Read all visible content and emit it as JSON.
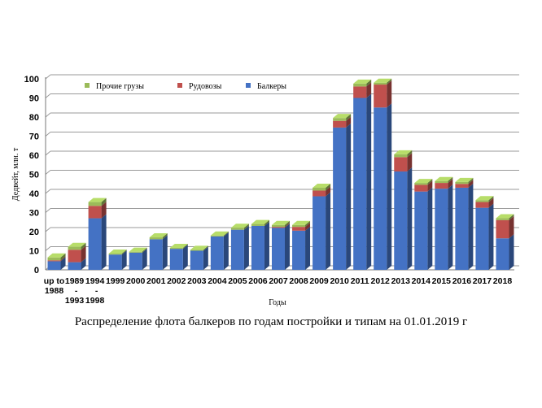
{
  "caption": "Распределение флота балкеров по годам постройки и типам на 01.01.2019 г",
  "chart_data": {
    "type": "bar",
    "stacked": true,
    "three_d": true,
    "categories": [
      [
        "up to",
        "1988"
      ],
      [
        "1989",
        "-",
        "1993"
      ],
      [
        "1994",
        "-",
        "1998"
      ],
      [
        "1999"
      ],
      [
        "2000"
      ],
      [
        "2001"
      ],
      [
        "2002"
      ],
      [
        "2003"
      ],
      [
        "2004"
      ],
      [
        "2005"
      ],
      [
        "2006"
      ],
      [
        "2007"
      ],
      [
        "2008"
      ],
      [
        "2009"
      ],
      [
        "2010"
      ],
      [
        "2011"
      ],
      [
        "2012"
      ],
      [
        "2013"
      ],
      [
        "2014"
      ],
      [
        "2015"
      ],
      [
        "2016"
      ],
      [
        "2017"
      ],
      [
        "2018"
      ]
    ],
    "series": [
      {
        "name": "Балкеры",
        "color": "#4472C4",
        "values": [
          4.5,
          4,
          27,
          8,
          9,
          16,
          11,
          10,
          17.5,
          21,
          23,
          22,
          20.5,
          38.5,
          74.5,
          90,
          85,
          51.5,
          41,
          42.5,
          43,
          32.5,
          16.5
        ]
      },
      {
        "name": "Рудовозы",
        "color": "#C0504D",
        "values": [
          0.5,
          6.5,
          6.5,
          0,
          0,
          0,
          0,
          0,
          0,
          0,
          0,
          0.5,
          2,
          3,
          3.5,
          6,
          12,
          7.5,
          3.5,
          3,
          2,
          3,
          9.5
        ]
      },
      {
        "name": "Прочие грузы",
        "color": "#9BBB59",
        "values": [
          1.5,
          1.5,
          2,
          0.5,
          0.5,
          1,
          0.5,
          0.5,
          0.5,
          1,
          1,
          1,
          1,
          1.5,
          1.5,
          1.5,
          1,
          1.5,
          1,
          1,
          1,
          1,
          1
        ]
      }
    ],
    "ylim": [
      0,
      100
    ],
    "yticks": [
      0,
      10,
      20,
      30,
      40,
      50,
      60,
      70,
      80,
      90,
      100
    ],
    "ylabel": "Дедвейт, млн. т",
    "xlabel": "Годы",
    "grid": true,
    "legend": {
      "position": "top",
      "order": [
        "Прочие грузы",
        "Рудовозы",
        "Балкеры"
      ]
    }
  }
}
